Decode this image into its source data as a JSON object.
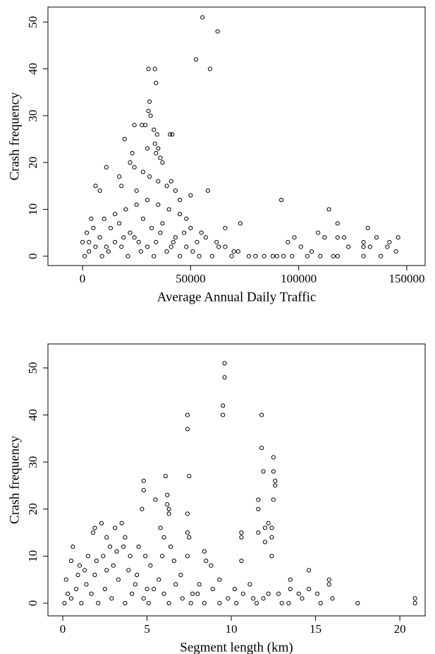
{
  "chart_data": [
    {
      "type": "scatter",
      "xlabel": "Average Annual Daily Traffic",
      "ylabel": "Crash frequency",
      "color": "#000000",
      "xlim": [
        -16000,
        158500
      ],
      "ylim": [
        -2,
        53.2
      ],
      "xticks": [
        0,
        50000,
        100000,
        150000
      ],
      "yticks": [
        0,
        10,
        20,
        30,
        40,
        50
      ],
      "x": [
        55500,
        62500,
        52500,
        59000,
        30500,
        33500,
        34000,
        31000,
        30500,
        31500,
        29000,
        27500,
        24000,
        33000,
        34500,
        40500,
        41500,
        19500,
        33500,
        35000,
        30000,
        23000,
        34000,
        36000,
        37000,
        22000,
        24000,
        11000,
        28000,
        31000,
        17000,
        41000,
        35000,
        39000,
        6000,
        18000,
        8000,
        43000,
        25000,
        58000,
        50000,
        45000,
        92000,
        114000,
        4000,
        73000,
        132000,
        109000,
        121000,
        146000,
        136000,
        112000,
        98000,
        118000,
        118000,
        130000,
        130000,
        133000,
        141000,
        145000,
        84000,
        88000,
        90000,
        93000,
        97000,
        104000,
        110000,
        116000,
        118000,
        130000,
        138000,
        77000,
        80000,
        70000,
        66000,
        62000,
        55000,
        48000,
        45000,
        40000,
        35000,
        30000,
        25000,
        20000,
        15000,
        10000,
        5000,
        2000,
        0,
        1000,
        3000,
        6000,
        9000,
        12000,
        15000,
        18000,
        21000,
        24000,
        27000,
        30000,
        33000,
        36000,
        39000,
        42000,
        45000,
        48000,
        51000,
        54000,
        57000,
        60000,
        63000,
        66000,
        69000,
        72000,
        101000,
        106000,
        123000,
        142000,
        95000,
        13000,
        8000,
        17000,
        22000,
        28000,
        32000,
        37000,
        43000,
        50000,
        3000,
        11000,
        19000,
        26000,
        34000,
        41000,
        47000,
        53000
      ],
      "values": [
        51,
        48,
        42,
        40,
        40,
        40,
        37,
        33,
        31,
        30,
        28,
        28,
        28,
        27,
        26,
        26,
        26,
        25,
        24,
        23,
        23,
        22,
        22,
        21,
        20,
        20,
        19,
        19,
        18,
        17,
        17,
        16,
        16,
        15,
        15,
        15,
        14,
        14,
        14,
        14,
        13,
        12,
        12,
        10,
        8,
        7,
        6,
        5,
        4,
        4,
        4,
        4,
        4,
        7,
        4,
        3,
        2,
        2,
        2,
        1,
        0,
        0,
        0,
        0,
        0,
        0,
        0,
        0,
        0,
        0,
        0,
        0,
        0,
        1,
        2,
        3,
        5,
        8,
        9,
        10,
        11,
        12,
        11,
        10,
        9,
        8,
        6,
        5,
        3,
        0,
        1,
        2,
        0,
        1,
        3,
        2,
        0,
        4,
        1,
        2,
        0,
        5,
        1,
        3,
        0,
        2,
        1,
        0,
        4,
        0,
        2,
        6,
        0,
        1,
        2,
        1,
        2,
        3,
        3,
        6,
        4,
        7,
        5,
        8,
        6,
        7,
        4,
        6,
        3,
        2,
        4,
        3,
        3,
        2,
        5,
        3
      ]
    },
    {
      "type": "scatter",
      "xlabel": "Segment length (km)",
      "ylabel": "Crash frequency",
      "color": "#000000",
      "xlim": [
        -0.88,
        21.5
      ],
      "ylim": [
        -2.7,
        55.1
      ],
      "xticks": [
        0,
        5,
        10,
        15,
        20
      ],
      "yticks": [
        0,
        10,
        20,
        30,
        40,
        50
      ],
      "x": [
        9.6,
        9.6,
        9.5,
        9.5,
        7.4,
        11.8,
        7.4,
        11.8,
        12.5,
        11.9,
        12.5,
        7.5,
        6.1,
        12.6,
        4.8,
        12.6,
        4.8,
        6.2,
        12.5,
        11.6,
        5.5,
        6.2,
        4.7,
        6.3,
        11.6,
        7.4,
        6.3,
        12.2,
        2.3,
        3.5,
        12.0,
        1.9,
        5.8,
        12.4,
        3.1,
        7.4,
        10.6,
        11.6,
        1.8,
        2.6,
        6.0,
        10.6,
        12.4,
        3.7,
        7.5,
        12.0,
        0.6,
        8.4,
        4.9,
        12.4,
        7.4,
        8.5,
        10.6,
        13.5,
        14.6,
        15.8,
        15.8,
        13.5,
        14.0,
        14.6,
        15.1,
        16.0,
        17.5,
        20.9,
        20.9,
        15.3,
        14.2,
        13.4,
        12.2,
        11.3,
        10.2,
        9.3,
        8.8,
        8.1,
        7.7,
        7.0,
        6.6,
        6.4,
        5.9,
        5.2,
        4.5,
        4.0,
        3.6,
        3.2,
        2.8,
        2.4,
        2.0,
        1.5,
        1.0,
        0.5,
        0.2,
        0.1,
        0.3,
        0.5,
        0.8,
        1.1,
        1.4,
        1.7,
        2.1,
        2.5,
        2.9,
        3.3,
        3.7,
        4.1,
        4.4,
        4.8,
        5.1,
        5.4,
        5.7,
        6.0,
        6.3,
        6.7,
        7.1,
        7.6,
        8.0,
        8.4,
        8.9,
        9.3,
        9.8,
        10.3,
        10.7,
        11.1,
        11.5,
        11.9,
        12.8,
        13.0,
        0.9,
        1.3,
        1.9,
        2.6,
        3.0,
        3.9,
        4.3,
        5.0
      ],
      "values": [
        51,
        48,
        42,
        40,
        40,
        40,
        37,
        33,
        31,
        28,
        28,
        27,
        27,
        26,
        26,
        25,
        24,
        23,
        22,
        22,
        22,
        21,
        20,
        20,
        20,
        19,
        19,
        17,
        17,
        17,
        16,
        16,
        16,
        16,
        16,
        15,
        15,
        15,
        15,
        14,
        14,
        14,
        14,
        14,
        14,
        13,
        12,
        11,
        10,
        10,
        10,
        9,
        9,
        5,
        7,
        5,
        4,
        3,
        2,
        3,
        2,
        1,
        0,
        1,
        0,
        0,
        1,
        0,
        2,
        1,
        3,
        5,
        8,
        4,
        2,
        6,
        9,
        12,
        10,
        8,
        12,
        10,
        12,
        11,
        12,
        10,
        9,
        10,
        8,
        9,
        5,
        0,
        2,
        1,
        3,
        0,
        4,
        2,
        0,
        3,
        1,
        5,
        0,
        2,
        6,
        1,
        0,
        3,
        5,
        2,
        0,
        4,
        1,
        0,
        2,
        0,
        3,
        0,
        1,
        0,
        2,
        4,
        0,
        1,
        2,
        0,
        6,
        7,
        6,
        7,
        8,
        7,
        4,
        3
      ]
    }
  ]
}
